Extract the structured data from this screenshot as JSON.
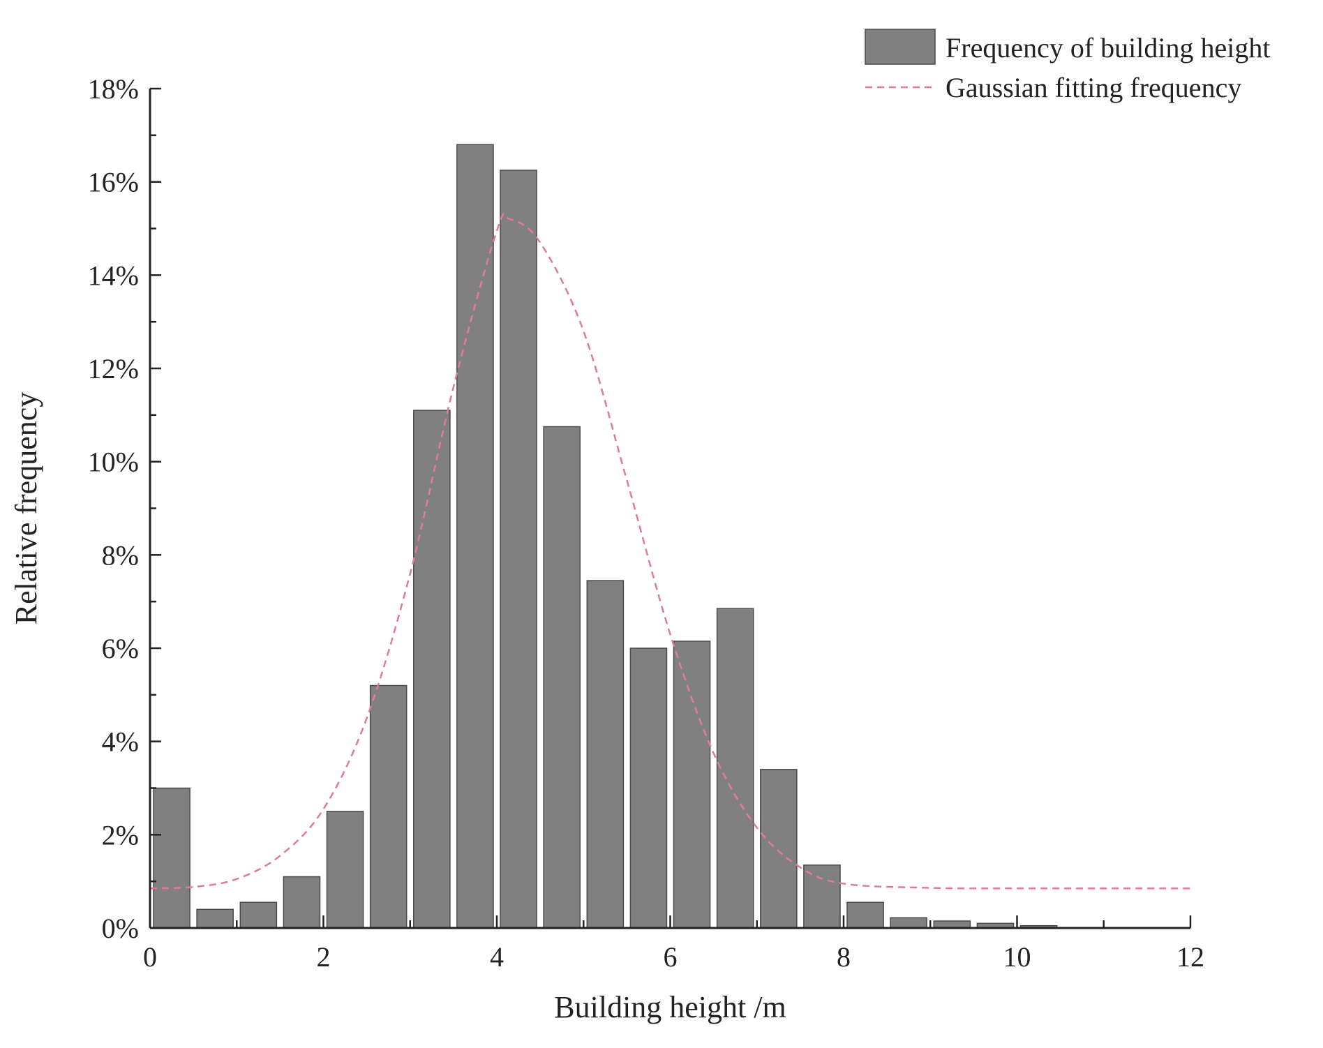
{
  "chart_data": {
    "type": "bar",
    "xlabel": "Building height /m",
    "ylabel": "Relative frequency",
    "xlim": [
      0,
      12
    ],
    "ylim": [
      0,
      18
    ],
    "x_ticks": [
      0,
      2,
      4,
      6,
      8,
      10,
      12
    ],
    "x_tick_labels": [
      "0",
      "2",
      "4",
      "6",
      "8",
      "10",
      "12"
    ],
    "y_ticks": [
      0,
      2,
      4,
      6,
      8,
      10,
      12,
      14,
      16,
      18
    ],
    "y_tick_labels": [
      "0%",
      "2%",
      "4%",
      "6%",
      "8%",
      "10%",
      "12%",
      "14%",
      "16%",
      "18%"
    ],
    "grid": false,
    "legend_position": "top-right",
    "bin_width": 0.5,
    "bar_color": "#808080",
    "fit_color": "#e07a9a",
    "series": [
      {
        "name": "Frequency of building height",
        "kind": "bar",
        "x": [
          0.25,
          0.75,
          1.25,
          1.75,
          2.25,
          2.75,
          3.25,
          3.75,
          4.25,
          4.75,
          5.25,
          5.75,
          6.25,
          6.75,
          7.25,
          7.75,
          8.25,
          8.75,
          9.25,
          9.75,
          10.25
        ],
        "values": [
          3.0,
          0.4,
          0.55,
          1.1,
          2.5,
          5.2,
          11.1,
          16.8,
          16.25,
          10.75,
          7.45,
          6.0,
          6.15,
          6.85,
          3.4,
          1.35,
          0.55,
          0.22,
          0.15,
          0.1,
          0.05
        ]
      },
      {
        "name": "Gaussian fitting frequency",
        "kind": "line",
        "style": "dashed",
        "x": [
          0.0,
          0.5,
          1.0,
          1.5,
          2.0,
          2.5,
          3.0,
          3.5,
          4.0,
          4.15,
          4.5,
          5.0,
          5.5,
          6.0,
          6.5,
          7.0,
          7.5,
          8.0,
          9.0,
          10.0,
          11.0,
          12.0
        ],
        "values": [
          0.85,
          0.88,
          1.05,
          1.55,
          2.55,
          4.5,
          7.6,
          11.6,
          14.95,
          15.2,
          14.7,
          12.8,
          9.6,
          6.3,
          3.75,
          2.15,
          1.3,
          0.95,
          0.86,
          0.85,
          0.85,
          0.85
        ]
      }
    ]
  }
}
